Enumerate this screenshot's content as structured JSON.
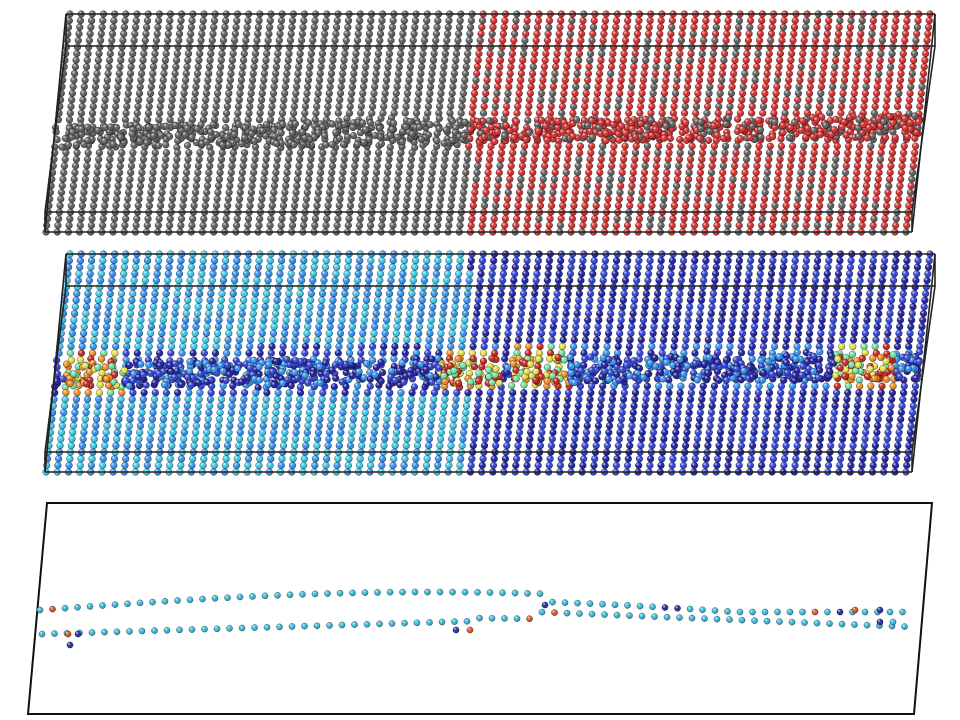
{
  "figure": {
    "panels": [
      {
        "id": "species",
        "kind": "atomistic-slab",
        "coloring": "two-phase",
        "colors": {
          "phase_a": "#5c5c5c",
          "phase_b": "#d42a2a",
          "edge": "#111111"
        }
      },
      {
        "id": "property-map",
        "kind": "atomistic-slab",
        "coloring": "colormap",
        "colormap": [
          "#1a1aa0",
          "#2b3fd6",
          "#2f8ff0",
          "#38c7e8",
          "#6fe0a0",
          "#e6e040",
          "#f08a20",
          "#c8201a"
        ]
      },
      {
        "id": "interface-atoms",
        "kind": "projected-interface",
        "colors": {
          "common": "#35b8dc",
          "dark": "#1e2a9a",
          "hot": "#d2561e",
          "edge": "#111111"
        }
      }
    ]
  }
}
